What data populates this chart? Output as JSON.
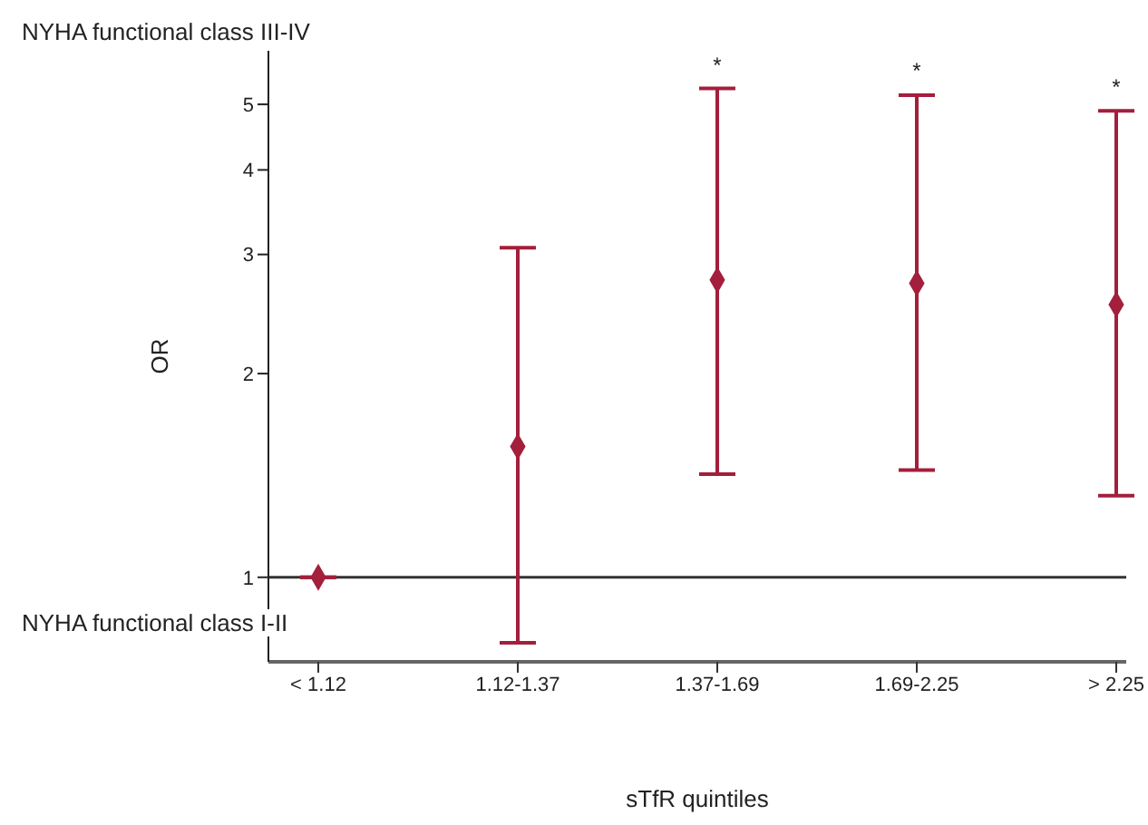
{
  "chart_data": {
    "type": "scatter",
    "xlabel": "sTfR quintiles",
    "ylabel": "OR",
    "categories": [
      "< 1.12",
      "1.12-1.37",
      "1.37-1.69",
      "1.69-2.25",
      "> 2.25"
    ],
    "series": [
      {
        "color": "#a31f3c",
        "values": [
          1,
          1.56,
          2.75,
          2.72,
          2.53
        ],
        "errors": [
          null,
          [
            0.8,
            3.07
          ],
          [
            1.42,
            5.28
          ],
          [
            1.44,
            5.16
          ],
          [
            1.32,
            4.89
          ]
        ]
      }
    ],
    "log": "y",
    "ylim": [
      0.75,
      6
    ],
    "yticks": [
      1,
      2,
      3,
      4,
      5
    ],
    "marker": "diamond",
    "grid": false,
    "legend": false,
    "ref_lines": [
      {
        "axis": "y",
        "value": 1,
        "color": "#333333"
      }
    ],
    "annotations": [
      "NYHA functional class III-IV",
      "NYHA functional class I-II",
      {
        "text": "*",
        "x": "1.37-1.69",
        "y": 5.28
      },
      {
        "text": "*",
        "x": "1.69-2.25",
        "y": 5.16
      },
      {
        "text": "*",
        "x": "> 2.25",
        "y": 4.89
      }
    ]
  }
}
